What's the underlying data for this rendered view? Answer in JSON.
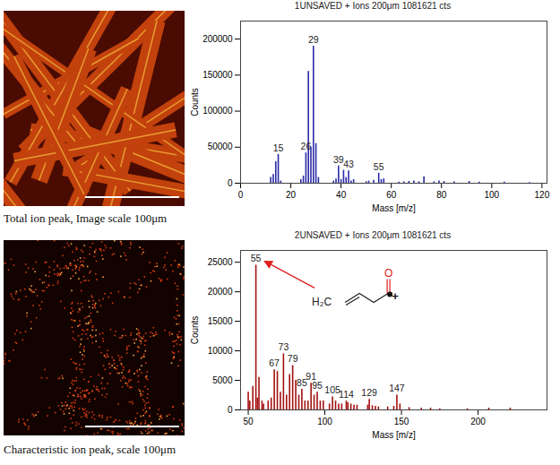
{
  "chart_data": [
    {
      "type": "bar",
      "title": "1UNSAVED + Ions 200μm 1081621 cts",
      "x_label": "Mass [m/z]",
      "y_label": "Counts",
      "color": "#2b2ba6",
      "x": [
        12,
        13,
        14,
        15,
        16,
        24,
        25,
        26,
        27,
        28,
        29,
        30,
        31,
        37,
        38,
        39,
        40,
        41,
        42,
        43,
        44,
        45,
        50,
        51,
        53,
        55,
        56,
        57,
        63,
        65,
        67,
        69,
        71,
        73,
        77,
        79,
        81,
        85,
        91,
        95,
        105,
        115
      ],
      "values": [
        8000,
        12000,
        30000,
        40000,
        3000,
        5000,
        10000,
        42000,
        155000,
        50000,
        190000,
        55000,
        8000,
        3000,
        6000,
        24000,
        5000,
        18000,
        8000,
        17000,
        3000,
        5000,
        2000,
        3000,
        4000,
        14000,
        5000,
        6000,
        1500,
        2000,
        2500,
        3000,
        2000,
        9000,
        2000,
        3000,
        2500,
        2000,
        2500,
        1500,
        1500,
        1000
      ],
      "labeled_peaks": [
        15,
        26,
        29,
        39,
        43,
        55
      ],
      "xlim": [
        0,
        122
      ],
      "xticks": [
        0,
        20,
        40,
        60,
        80,
        100,
        120
      ],
      "ylim": [
        0,
        225000
      ],
      "yticks": [
        0,
        50000,
        100000,
        150000,
        200000
      ]
    },
    {
      "type": "bar",
      "title": "2UNSAVED + Ions 200μm 1081621 cts",
      "x_label": "Mass [m/z]",
      "y_label": "Counts",
      "color": "#a3110f",
      "x": [
        50,
        51,
        53,
        55,
        56,
        57,
        59,
        60,
        63,
        65,
        67,
        69,
        71,
        73,
        75,
        77,
        79,
        81,
        83,
        85,
        87,
        89,
        91,
        93,
        95,
        97,
        99,
        103,
        105,
        107,
        109,
        111,
        114,
        115,
        117,
        119,
        121,
        128,
        129,
        131,
        133,
        135,
        141,
        145,
        147,
        149,
        155,
        163,
        169,
        175,
        193,
        207,
        221
      ],
      "values": [
        3000,
        1500,
        4000,
        24500,
        2000,
        5500,
        1500,
        1000,
        1500,
        2000,
        6800,
        6500,
        3000,
        9500,
        2500,
        6000,
        7500,
        5000,
        2500,
        3500,
        1500,
        1500,
        4500,
        2500,
        3000,
        1500,
        1500,
        1000,
        2200,
        1500,
        1000,
        1000,
        1500,
        1200,
        1000,
        800,
        800,
        800,
        1800,
        700,
        600,
        500,
        500,
        600,
        2500,
        1000,
        400,
        300,
        300,
        200,
        200,
        300,
        300
      ],
      "labeled_peaks": [
        55,
        67,
        73,
        79,
        85,
        91,
        95,
        105,
        114,
        129,
        147
      ],
      "annotation": {
        "x": 55,
        "atoms": [
          "H₂C",
          "O"
        ],
        "charge": "+"
      },
      "xlim": [
        45,
        245
      ],
      "xticks": [
        50,
        100,
        150,
        200
      ],
      "ylim": [
        0,
        27000
      ],
      "yticks": [
        0,
        5000,
        10000,
        15000,
        20000,
        25000
      ]
    }
  ],
  "image_captions": [
    "Total ion peak, Image scale 100μm",
    "Characteristic ion peak, scale 100μm"
  ]
}
